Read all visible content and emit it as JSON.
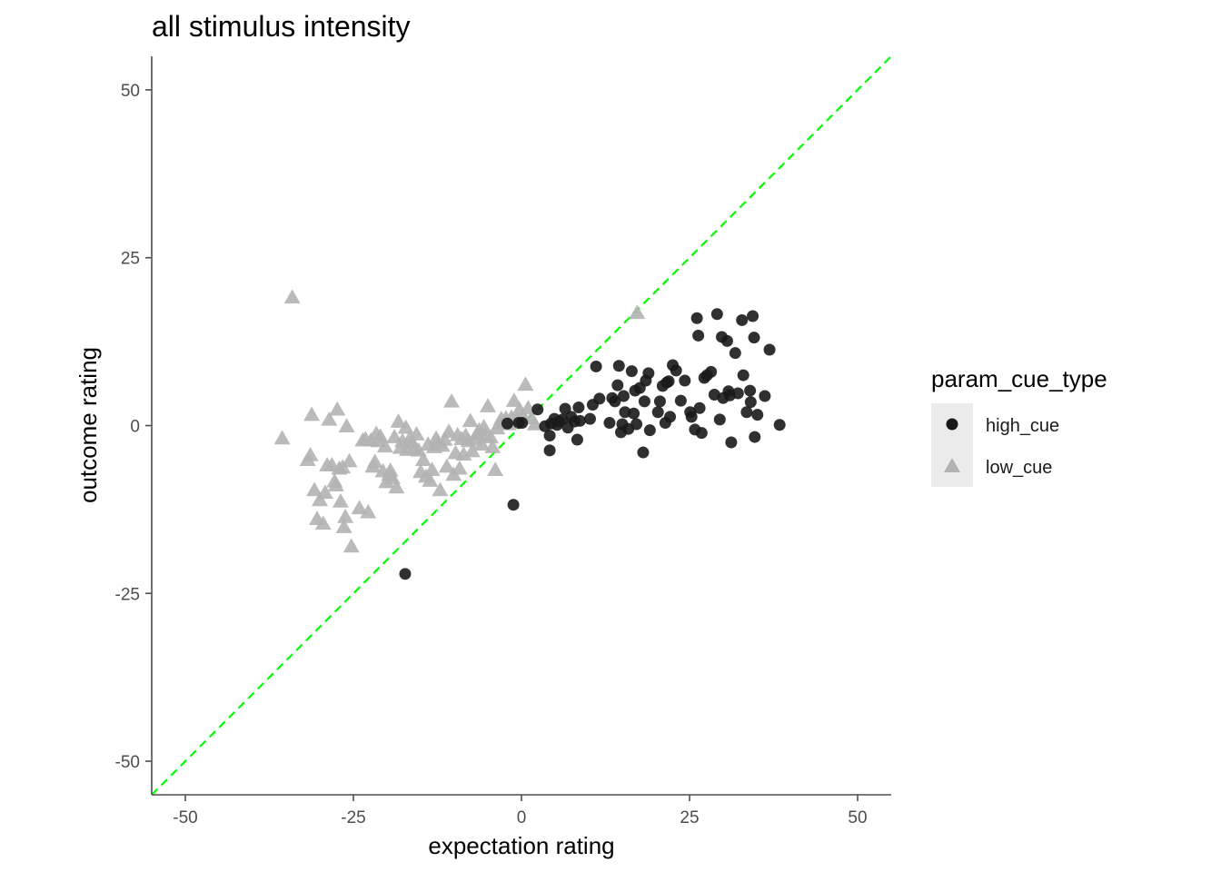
{
  "chart_data": {
    "type": "scatter",
    "title": "all stimulus intensity",
    "xlabel": "expectation rating",
    "ylabel": "outcome rating",
    "xlim": [
      -55,
      55
    ],
    "ylim": [
      -55,
      55
    ],
    "xticks": [
      "-50",
      "-25",
      "0",
      "25",
      "50"
    ],
    "yticks": [
      "-50",
      "-25",
      "0",
      "25",
      "50"
    ],
    "grid": false,
    "legend": {
      "title": "param_cue_type",
      "placement": "right",
      "entries": [
        "high_cue",
        "low_cue"
      ]
    },
    "reference_line": {
      "slope": 1,
      "intercept": 0,
      "style": "dashed",
      "color": "#00ff00"
    },
    "series": [
      {
        "name": "high_cue",
        "marker": "circle",
        "color": "#1a1a1a",
        "points": [
          [
            -17.3,
            -22.1
          ],
          [
            -1.2,
            -11.8
          ],
          [
            -2.1,
            0.3
          ],
          [
            -0.4,
            0.4
          ],
          [
            0.1,
            0.4
          ],
          [
            2.4,
            2.4
          ],
          [
            3.5,
            -0.1
          ],
          [
            4.2,
            -1.5
          ],
          [
            4.2,
            -3.7
          ],
          [
            4.4,
            0.3
          ],
          [
            4.9,
            1.0
          ],
          [
            5.3,
            0.1
          ],
          [
            5.6,
            0.6
          ],
          [
            6.1,
            0.9
          ],
          [
            6.5,
            2.5
          ],
          [
            6.9,
            -0.3
          ],
          [
            7.4,
            1.3
          ],
          [
            7.9,
            0.6
          ],
          [
            8.3,
            -2.1
          ],
          [
            8.5,
            2.7
          ],
          [
            8.7,
            0.7
          ],
          [
            10.2,
            1.0
          ],
          [
            10.6,
            3.1
          ],
          [
            11.1,
            8.8
          ],
          [
            11.6,
            4.0
          ],
          [
            13.1,
            0.4
          ],
          [
            13.5,
            4.1
          ],
          [
            13.9,
            3.6
          ],
          [
            14.3,
            6.0
          ],
          [
            14.5,
            8.9
          ],
          [
            14.8,
            -1.0
          ],
          [
            15.0,
            0.2
          ],
          [
            15.2,
            4.4
          ],
          [
            15.4,
            2.0
          ],
          [
            15.9,
            -0.5
          ],
          [
            16.4,
            8.1
          ],
          [
            16.7,
            1.8
          ],
          [
            16.9,
            5.2
          ],
          [
            17.1,
            0.2
          ],
          [
            17.6,
            5.6
          ],
          [
            18.1,
            -4.0
          ],
          [
            18.3,
            3.6
          ],
          [
            18.5,
            6.7
          ],
          [
            18.9,
            7.8
          ],
          [
            19.1,
            -0.7
          ],
          [
            20.3,
            2.0
          ],
          [
            20.6,
            3.6
          ],
          [
            21.0,
            5.9
          ],
          [
            21.4,
            0.4
          ],
          [
            21.6,
            6.4
          ],
          [
            21.9,
            6.6
          ],
          [
            22.1,
            1.3
          ],
          [
            22.5,
            9.0
          ],
          [
            23.0,
            8.2
          ],
          [
            23.7,
            3.7
          ],
          [
            24.3,
            6.7
          ],
          [
            25.1,
            2.0
          ],
          [
            25.3,
            1.3
          ],
          [
            25.8,
            -0.6
          ],
          [
            26.1,
            16.0
          ],
          [
            26.3,
            13.4
          ],
          [
            26.5,
            2.6
          ],
          [
            26.8,
            -1.1
          ],
          [
            27.2,
            7.1
          ],
          [
            27.6,
            7.5
          ],
          [
            28.2,
            8.0
          ],
          [
            28.7,
            4.6
          ],
          [
            29.1,
            16.6
          ],
          [
            29.5,
            0.9
          ],
          [
            29.8,
            13.2
          ],
          [
            30.0,
            4.1
          ],
          [
            30.6,
            12.6
          ],
          [
            30.8,
            5.1
          ],
          [
            31.0,
            4.5
          ],
          [
            31.2,
            -2.5
          ],
          [
            31.8,
            10.8
          ],
          [
            32.2,
            4.8
          ],
          [
            32.8,
            15.7
          ],
          [
            33.0,
            7.5
          ],
          [
            33.5,
            2.0
          ],
          [
            34.0,
            5.2
          ],
          [
            34.1,
            3.5
          ],
          [
            34.4,
            16.3
          ],
          [
            34.6,
            13.1
          ],
          [
            34.7,
            -1.7
          ],
          [
            35.1,
            1.6
          ],
          [
            36.2,
            4.4
          ],
          [
            36.9,
            11.3
          ],
          [
            38.4,
            0.1
          ]
        ]
      },
      {
        "name": "low_cue",
        "marker": "triangle",
        "color": "#b3b3b3",
        "points": [
          [
            -35.6,
            -1.9
          ],
          [
            -34.1,
            19.1
          ],
          [
            -31.8,
            -5.1
          ],
          [
            -31.4,
            -4.4
          ],
          [
            -31.2,
            1.6
          ],
          [
            -30.8,
            -9.6
          ],
          [
            -30.4,
            -13.9
          ],
          [
            -30.0,
            -11.1
          ],
          [
            -29.5,
            -14.6
          ],
          [
            -29.2,
            -10.0
          ],
          [
            -28.9,
            -5.9
          ],
          [
            -28.6,
            0.9
          ],
          [
            -28.2,
            -5.9
          ],
          [
            -27.8,
            -8.3
          ],
          [
            -27.6,
            -8.9
          ],
          [
            -27.4,
            2.4
          ],
          [
            -27.1,
            -6.4
          ],
          [
            -26.9,
            -11.3
          ],
          [
            -26.6,
            -6.2
          ],
          [
            -26.4,
            -15.1
          ],
          [
            -26.2,
            -13.6
          ],
          [
            -26.0,
            -0.1
          ],
          [
            -25.6,
            -5.3
          ],
          [
            -25.3,
            -18.0
          ],
          [
            -24.1,
            -12.3
          ],
          [
            -23.6,
            -2.2
          ],
          [
            -23.2,
            -2.0
          ],
          [
            -22.8,
            -12.9
          ],
          [
            -22.4,
            -2.2
          ],
          [
            -22.1,
            -6.1
          ],
          [
            -21.8,
            -5.4
          ],
          [
            -21.6,
            -1.2
          ],
          [
            -21.3,
            -2.3
          ],
          [
            -21.0,
            -1.6
          ],
          [
            -20.6,
            -6.8
          ],
          [
            -20.3,
            -3.1
          ],
          [
            -20.1,
            -8.4
          ],
          [
            -19.7,
            -7.3
          ],
          [
            -19.5,
            -6.7
          ],
          [
            -19.2,
            -7.8
          ],
          [
            -18.9,
            -1.7
          ],
          [
            -18.6,
            -9.2
          ],
          [
            -18.3,
            0.6
          ],
          [
            -18.0,
            -3.3
          ],
          [
            -17.7,
            -2.3
          ],
          [
            -17.2,
            -0.3
          ],
          [
            -17.0,
            -3.6
          ],
          [
            -16.6,
            -1.9
          ],
          [
            -16.3,
            -2.5
          ],
          [
            -15.9,
            -3.4
          ],
          [
            -15.6,
            -1.3
          ],
          [
            -15.3,
            -3.7
          ],
          [
            -15.0,
            -6.9
          ],
          [
            -14.6,
            -5.1
          ],
          [
            -14.2,
            -7.6
          ],
          [
            -13.9,
            -2.8
          ],
          [
            -13.6,
            -8.2
          ],
          [
            -13.3,
            -6.6
          ],
          [
            -13.0,
            -3.2
          ],
          [
            -12.7,
            -1.9
          ],
          [
            -12.4,
            -2.5
          ],
          [
            -12.1,
            -9.6
          ],
          [
            -11.8,
            -3.0
          ],
          [
            -11.4,
            -2.1
          ],
          [
            -11.1,
            -6.1
          ],
          [
            -10.8,
            -0.9
          ],
          [
            -10.4,
            3.6
          ],
          [
            -10.1,
            -7.3
          ],
          [
            -9.8,
            -4.1
          ],
          [
            -9.5,
            -1.4
          ],
          [
            -9.2,
            -6.4
          ],
          [
            -8.9,
            -2.0
          ],
          [
            -8.6,
            -4.3
          ],
          [
            -8.3,
            -1.5
          ],
          [
            -7.9,
            -2.3
          ],
          [
            -7.6,
            0.7
          ],
          [
            -7.3,
            -3.8
          ],
          [
            -6.9,
            -2.0
          ],
          [
            -6.6,
            -1.2
          ],
          [
            -6.3,
            -0.7
          ],
          [
            -5.9,
            -2.8
          ],
          [
            -5.6,
            -0.2
          ],
          [
            -5.3,
            -1.5
          ],
          [
            -5.0,
            2.9
          ],
          [
            -4.6,
            -1.7
          ],
          [
            -4.3,
            -3.2
          ],
          [
            -3.9,
            -6.6
          ],
          [
            -3.6,
            -0.4
          ],
          [
            -3.3,
            0.3
          ],
          [
            -3.0,
            1.0
          ],
          [
            -2.6,
            0.6
          ],
          [
            -2.3,
            1.1
          ],
          [
            -1.9,
            0.2
          ],
          [
            -1.5,
            1.2
          ],
          [
            -1.1,
            3.7
          ],
          [
            -0.7,
            0.9
          ],
          [
            -0.3,
            2.4
          ],
          [
            0.2,
            1.5
          ],
          [
            0.6,
            6.1
          ],
          [
            1.0,
            2.6
          ],
          [
            1.5,
            1.1
          ],
          [
            2.0,
            0.2
          ],
          [
            17.2,
            16.8
          ]
        ]
      }
    ]
  }
}
